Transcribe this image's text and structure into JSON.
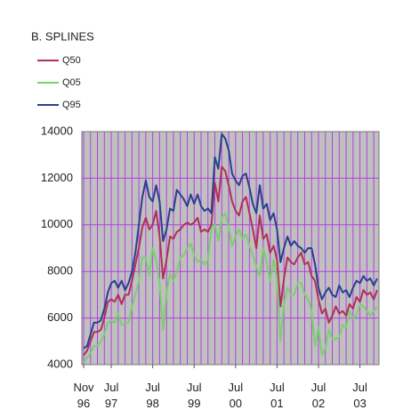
{
  "chart_data": {
    "type": "line",
    "title": "B. SPLINES",
    "categories": [
      "Nov 96",
      null,
      null,
      null,
      null,
      null,
      null,
      null,
      "Jul 97",
      null,
      null,
      null,
      null,
      null,
      null,
      null,
      null,
      null,
      null,
      null,
      "Jul 98",
      null,
      null,
      null,
      null,
      null,
      null,
      null,
      null,
      null,
      null,
      null,
      "Jul 99",
      null,
      null,
      null,
      null,
      null,
      null,
      null,
      null,
      null,
      null,
      null,
      "Jul 00",
      null,
      null,
      null,
      null,
      null,
      null,
      null,
      null,
      null,
      null,
      null,
      "Jul 01",
      null,
      null,
      null,
      null,
      null,
      null,
      null,
      null,
      null,
      null,
      null,
      "Jul 02",
      null,
      null,
      null,
      null,
      null,
      null,
      null,
      null,
      null,
      null,
      null,
      "Jul 03",
      null,
      null,
      null,
      null,
      null
    ],
    "series": [
      {
        "name": "Q50",
        "color": "#b0305a",
        "values": [
          4400,
          4600,
          5000,
          5400,
          5400,
          5500,
          6000,
          6700,
          6800,
          6700,
          7000,
          6600,
          7000,
          7000,
          7600,
          8300,
          9000,
          9900,
          10300,
          9800,
          10000,
          10600,
          9500,
          7700,
          8500,
          9500,
          9400,
          9700,
          9800,
          10000,
          10100,
          10000,
          10100,
          10300,
          9700,
          9800,
          9700,
          10000,
          11800,
          11000,
          12500,
          12300,
          11700,
          11000,
          10600,
          10400,
          11000,
          11200,
          10500,
          9800,
          9000,
          10400,
          9400,
          9600,
          8800,
          9100,
          8500,
          6500,
          7700,
          8600,
          8400,
          8300,
          8600,
          8800,
          8300,
          8400,
          7800,
          7600,
          6800,
          6200,
          6400,
          5800,
          6100,
          6500,
          6200,
          6300,
          6100,
          6600,
          6400,
          6900,
          6700,
          7200,
          7000,
          7100,
          6800,
          7200
        ]
      },
      {
        "name": "Q05",
        "color": "#7ccf6e",
        "values": [
          4100,
          4300,
          4500,
          4800,
          4800,
          5000,
          5300,
          5800,
          5900,
          5800,
          6200,
          5700,
          5800,
          5800,
          6500,
          7000,
          7600,
          8600,
          8600,
          7800,
          9000,
          8500,
          7500,
          5500,
          7100,
          7900,
          7600,
          8000,
          8600,
          8700,
          9000,
          9200,
          8700,
          8400,
          8500,
          8300,
          8500,
          9800,
          10000,
          9300,
          10300,
          10500,
          9900,
          9100,
          9500,
          9800,
          9400,
          9600,
          9100,
          8700,
          8200,
          7800,
          9000,
          8400,
          7600,
          8500,
          7700,
          5000,
          6600,
          7300,
          7000,
          7000,
          7500,
          7500,
          7000,
          6800,
          6300,
          4800,
          5600,
          4400,
          4700,
          5500,
          5100,
          5100,
          5200,
          5700,
          5600,
          6300,
          6000,
          6100,
          6600,
          6500,
          6300,
          6100,
          6300,
          6500
        ]
      },
      {
        "name": "Q95",
        "color": "#2a3f8f",
        "values": [
          4700,
          4800,
          5300,
          5800,
          5800,
          5900,
          6400,
          7100,
          7500,
          7600,
          7300,
          7600,
          7200,
          7500,
          8000,
          8800,
          10000,
          11200,
          11900,
          11200,
          11000,
          11700,
          11000,
          9300,
          9800,
          10700,
          10600,
          11500,
          11300,
          11100,
          10800,
          11300,
          10900,
          11300,
          10800,
          10600,
          10700,
          10500,
          12900,
          12400,
          13900,
          13700,
          13200,
          12200,
          11900,
          11700,
          12100,
          12200,
          11600,
          10900,
          10500,
          11700,
          10700,
          10900,
          10200,
          10500,
          9800,
          8400,
          9000,
          9500,
          9100,
          9300,
          9100,
          9000,
          8800,
          9000,
          9000,
          8300,
          7300,
          6800,
          7100,
          7300,
          7000,
          6900,
          7400,
          7100,
          7200,
          6900,
          7300,
          7600,
          7500,
          7800,
          7600,
          7700,
          7400,
          7700
        ]
      }
    ],
    "ylim": [
      4000,
      14000
    ],
    "yticks": [
      4000,
      6000,
      8000,
      10000,
      12000,
      14000
    ],
    "grid": true
  }
}
